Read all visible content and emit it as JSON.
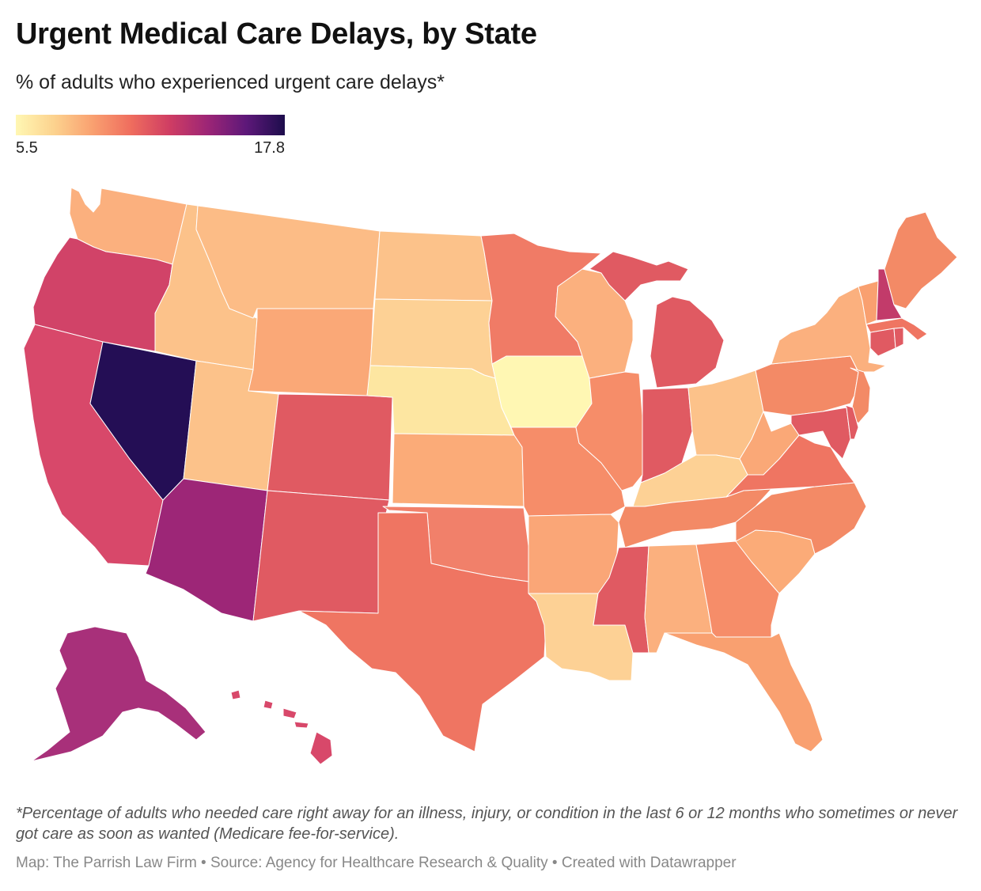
{
  "title": "Urgent Medical Care Delays, by State",
  "subtitle": "% of adults who experienced urgent care delays*",
  "legend": {
    "min": "5.5",
    "max": "17.8",
    "colors": [
      "#fff7b3",
      "#fcd28e",
      "#f9a070",
      "#ef6d5e",
      "#cf3d63",
      "#9c2576",
      "#5d1879",
      "#1d0d4c"
    ]
  },
  "footnote": "*Percentage of adults who needed care right away for an illness, injury, or condition in the last 6 or 12 months who sometimes or never got care as soon as wanted (Medicare fee-for-service).",
  "credits": "Map: The Parrish Law Firm  • Source: Agency for Healthcare Research & Quality • Created with Datawrapper",
  "colors": {
    "lightest": "#fff7b3",
    "light": "#fde6a1",
    "pale_orange": "#fcc28a",
    "orange_light": "#fbb480",
    "orange": "#f9a070",
    "orange_red": "#f38a66",
    "coral": "#ef7562",
    "red": "#e05a62",
    "crimson": "#d24666",
    "magenta": "#b8386e",
    "purple": "#9d2677",
    "darkest": "#240e55"
  },
  "map_states": [
    {
      "id": "WA",
      "color": "#fbb07e"
    },
    {
      "id": "OR",
      "color": "#d14368"
    },
    {
      "id": "CA",
      "color": "#d8486a"
    },
    {
      "id": "NV",
      "color": "#240e55"
    },
    {
      "id": "ID",
      "color": "#fcc28a"
    },
    {
      "id": "MT",
      "color": "#fcbc86"
    },
    {
      "id": "WY",
      "color": "#faa877"
    },
    {
      "id": "UT",
      "color": "#fcc28a"
    },
    {
      "id": "AZ",
      "color": "#9d2677"
    },
    {
      "id": "CO",
      "color": "#e05a62"
    },
    {
      "id": "NM",
      "color": "#e05a62"
    },
    {
      "id": "ND",
      "color": "#fcc28a"
    },
    {
      "id": "SD",
      "color": "#fdd195"
    },
    {
      "id": "NE",
      "color": "#fde6a1"
    },
    {
      "id": "KS",
      "color": "#fbab78"
    },
    {
      "id": "OK",
      "color": "#f1806a"
    },
    {
      "id": "TX",
      "color": "#ef7562"
    },
    {
      "id": "MN",
      "color": "#f07b66"
    },
    {
      "id": "IA",
      "color": "#fff7b3"
    },
    {
      "id": "MO",
      "color": "#f68d69"
    },
    {
      "id": "AR",
      "color": "#faa677"
    },
    {
      "id": "LA",
      "color": "#fdd195"
    },
    {
      "id": "WI",
      "color": "#fbb07e"
    },
    {
      "id": "IL",
      "color": "#f68d69"
    },
    {
      "id": "MI",
      "color": "#e05a62"
    },
    {
      "id": "IN",
      "color": "#e05a62"
    },
    {
      "id": "OH",
      "color": "#fcc28a"
    },
    {
      "id": "KY",
      "color": "#fdd195"
    },
    {
      "id": "TN",
      "color": "#f38a66"
    },
    {
      "id": "MS",
      "color": "#e05a62"
    },
    {
      "id": "AL",
      "color": "#fbb07e"
    },
    {
      "id": "GA",
      "color": "#f68d69"
    },
    {
      "id": "FL",
      "color": "#f9a070"
    },
    {
      "id": "SC",
      "color": "#fbab78"
    },
    {
      "id": "NC",
      "color": "#f38a66"
    },
    {
      "id": "VA",
      "color": "#ef7562"
    },
    {
      "id": "WV",
      "color": "#faa877"
    },
    {
      "id": "PA",
      "color": "#f38a66"
    },
    {
      "id": "NY",
      "color": "#fbb07e"
    },
    {
      "id": "NJ",
      "color": "#f38a66"
    },
    {
      "id": "MD",
      "color": "#e05a62"
    },
    {
      "id": "DE",
      "color": "#e05a62"
    },
    {
      "id": "CT",
      "color": "#e05a62"
    },
    {
      "id": "RI",
      "color": "#e05a62"
    },
    {
      "id": "MA",
      "color": "#ef7562"
    },
    {
      "id": "VT",
      "color": "#f9a070"
    },
    {
      "id": "NH",
      "color": "#c23b6a"
    },
    {
      "id": "ME",
      "color": "#f38a66"
    },
    {
      "id": "AK",
      "color": "#a8307a"
    },
    {
      "id": "HI",
      "color": "#d8486a"
    }
  ]
}
